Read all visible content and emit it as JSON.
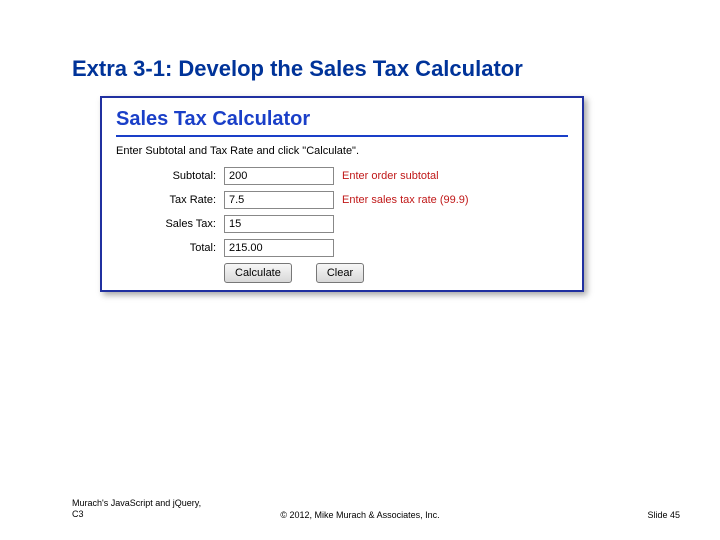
{
  "slide": {
    "title": "Extra 3-1: Develop the Sales Tax Calculator",
    "title_color": "#003399",
    "title_fontsize": 22
  },
  "app": {
    "heading": "Sales Tax Calculator",
    "heading_color": "#1a3fc8",
    "instructions": "Enter Subtotal and Tax Rate and click \"Calculate\".",
    "frame_border_color": "#2030a0",
    "fields": {
      "subtotal": {
        "label": "Subtotal:",
        "value": "200",
        "hint": "Enter order subtotal"
      },
      "taxRate": {
        "label": "Tax Rate:",
        "value": "7.5",
        "hint": "Enter sales tax rate (99.9)"
      },
      "salesTax": {
        "label": "Sales Tax:",
        "value": "15",
        "hint": ""
      },
      "total": {
        "label": "Total:",
        "value": "215.00",
        "hint": ""
      }
    },
    "buttons": {
      "calculate": "Calculate",
      "clear": "Clear"
    },
    "hint_color": "#c01818"
  },
  "footer": {
    "left_line1": "Murach's JavaScript and jQuery,",
    "left_line2": "C3",
    "center": "© 2012, Mike Murach & Associates, Inc.",
    "right": "Slide 45",
    "fontsize": 9
  }
}
